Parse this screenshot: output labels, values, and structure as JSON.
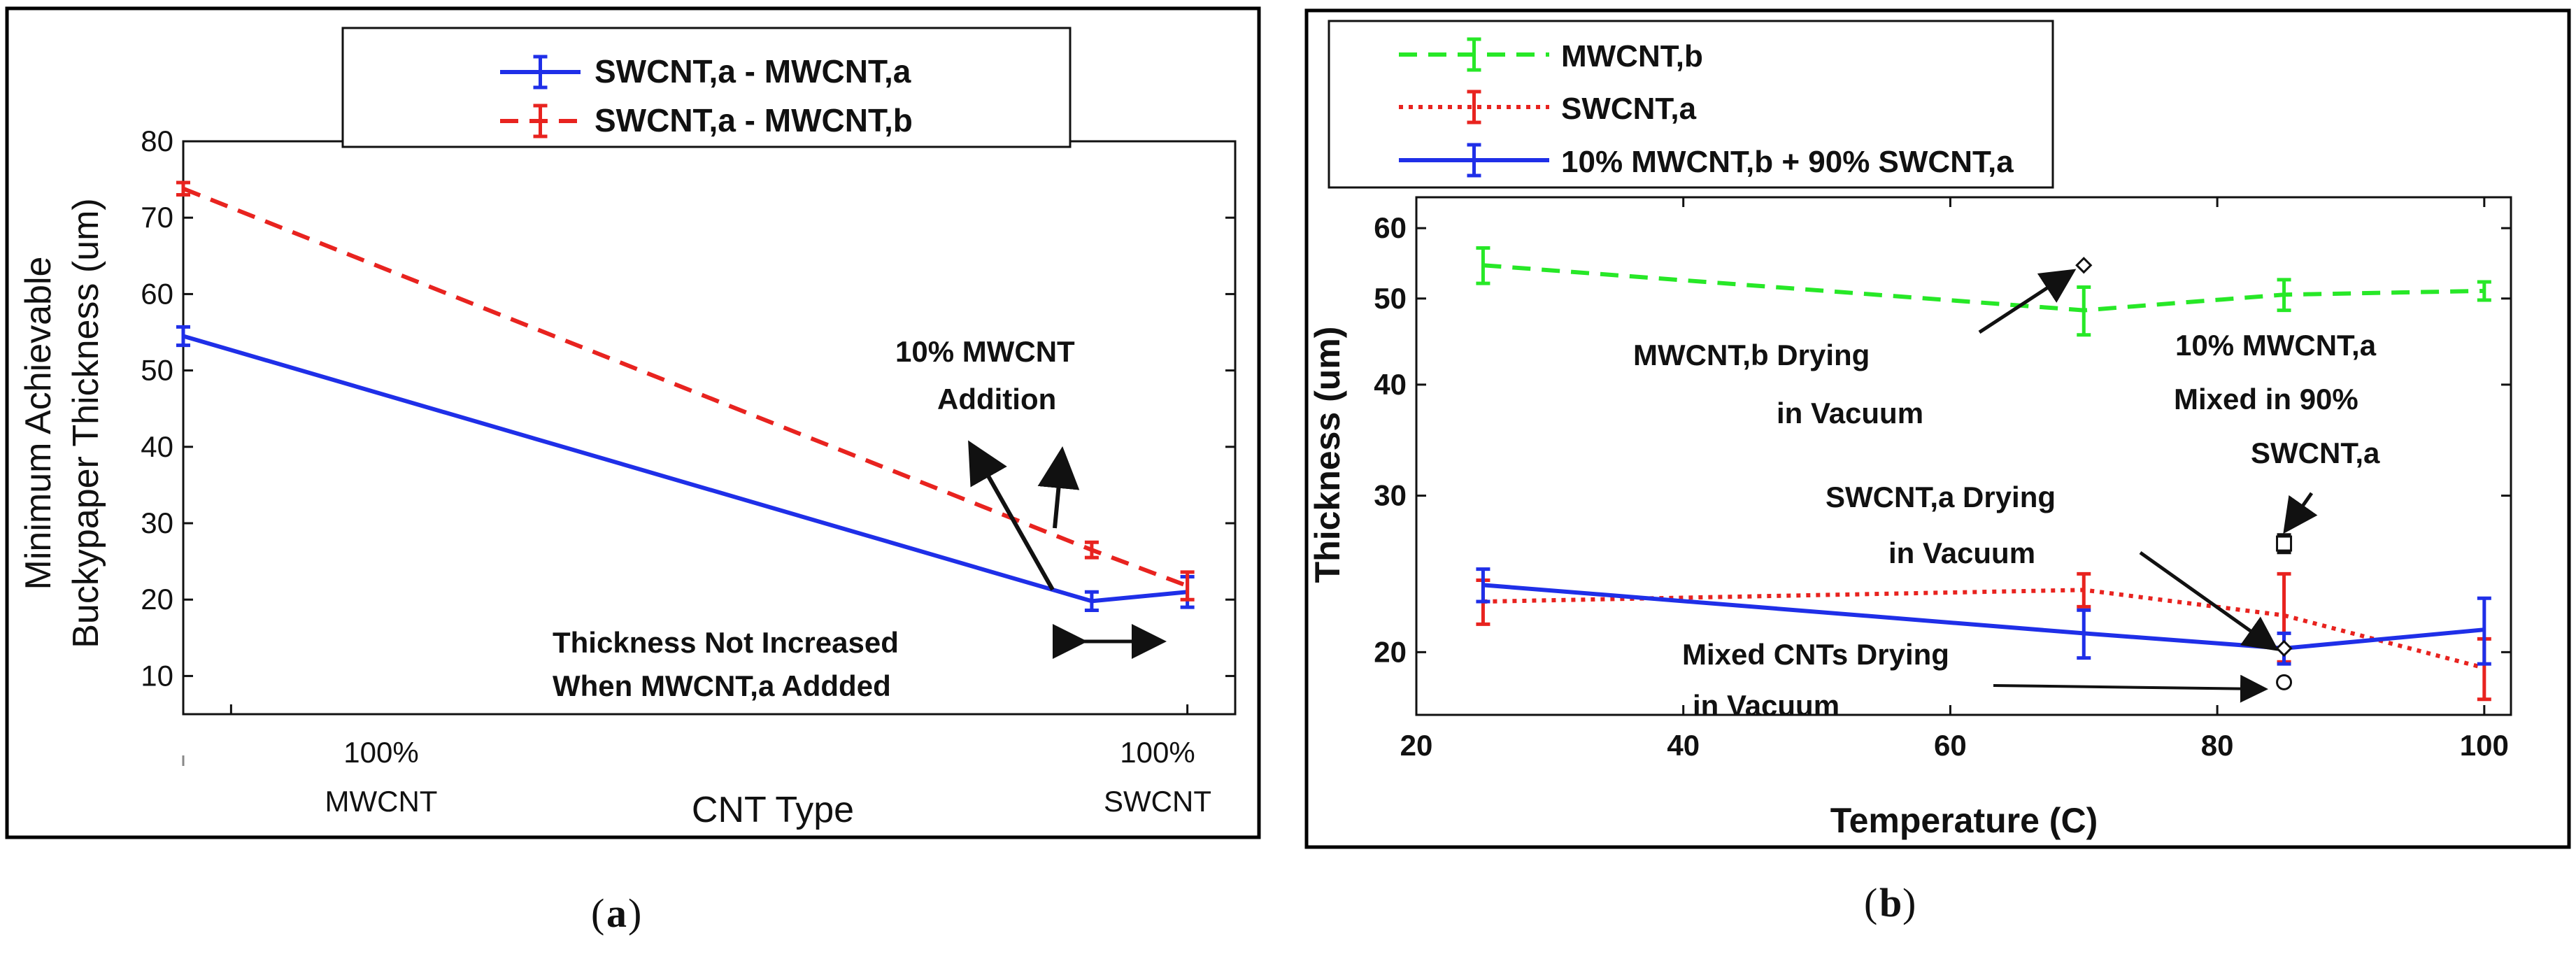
{
  "panels": [
    {
      "caption_open": "(",
      "caption_letter": "a",
      "caption_close": ")"
    },
    {
      "caption_open": "(",
      "caption_letter": "b",
      "caption_close": ")"
    }
  ],
  "chart_data": [
    {
      "type": "line",
      "title": "",
      "xlabel": "CNT Type",
      "ylabel_line1": "Minimum Achievable",
      "ylabel_line2": "Buckypaper Thickness (um)",
      "ylim": [
        5,
        80
      ],
      "yticks": [
        10,
        20,
        30,
        40,
        50,
        60,
        70,
        80
      ],
      "xlim": [
        -0.05,
        1.05
      ],
      "categories": [
        {
          "x": 0,
          "line1": "100%",
          "line2": "MWCNT"
        },
        {
          "x": 1,
          "line1": "100%",
          "line2": "SWCNT"
        }
      ],
      "grid": false,
      "legend_position": "top-center",
      "series": [
        {
          "name": "SWCNT,a - MWCNT,a",
          "color": "#1f2fe8",
          "style": "solid",
          "x": [
            -0.05,
            0.9,
            1.0
          ],
          "y": [
            54.5,
            19.8,
            21.0
          ],
          "err": [
            1.2,
            1.2,
            2.0
          ]
        },
        {
          "name": "SWCNT,a - MWCNT,b",
          "color": "#e8231f",
          "style": "dashed",
          "x": [
            -0.05,
            0.9,
            1.0
          ],
          "y": [
            73.8,
            26.5,
            21.8
          ],
          "err": [
            0.8,
            1.0,
            1.8
          ]
        }
      ],
      "annotations": [
        {
          "key": "mwcnt_add",
          "lines": [
            "10% MWCNT",
            "Addition"
          ]
        },
        {
          "key": "not_increased",
          "lines": [
            "Thickness Not Increased",
            "When MWCNT,a Addded"
          ]
        }
      ]
    },
    {
      "type": "line",
      "title": "",
      "xlabel": "Temperature (C)",
      "ylabel": "Thickness (um)",
      "yscale": "log",
      "ylim": [
        17,
        65
      ],
      "yticks": [
        20,
        30,
        40,
        50,
        60
      ],
      "xlim": [
        20,
        102
      ],
      "xticks": [
        20,
        40,
        60,
        80,
        100
      ],
      "grid": false,
      "legend_position": "top-left-outside",
      "series": [
        {
          "name": "MWCNT,b",
          "color": "#27e827",
          "style": "dashed",
          "x": [
            25,
            70,
            85,
            100
          ],
          "y": [
            54.5,
            48.5,
            50.5,
            51.0
          ],
          "err": [
            2.5,
            3.0,
            2.0,
            1.2
          ]
        },
        {
          "name": "SWCNT,a",
          "color": "#e8231f",
          "style": "dotted",
          "x": [
            25,
            70,
            85,
            100
          ],
          "y": [
            22.8,
            23.5,
            22.0,
            19.2
          ],
          "err": [
            1.3,
            1.0,
            2.5,
            1.5
          ]
        },
        {
          "name": "10% MWCNT,b + 90% SWCNT,a",
          "color": "#1f2fe8",
          "style": "solid",
          "x": [
            25,
            70,
            85,
            100
          ],
          "y": [
            23.8,
            21.0,
            20.2,
            21.2
          ],
          "err": [
            1.0,
            1.3,
            0.8,
            1.8
          ]
        }
      ],
      "markers": [
        {
          "key": "mwcnt_vac",
          "x": 70,
          "y": 54.5,
          "shape": "diamond"
        },
        {
          "key": "swcnt_vac",
          "x": 85,
          "y": 20.2,
          "shape": "diamond"
        },
        {
          "key": "mixed_vac",
          "x": 85,
          "y": 18.5,
          "shape": "circle"
        },
        {
          "key": "mixed_a",
          "x": 85,
          "y": 26.5,
          "shape": "square",
          "err": 0.6
        }
      ],
      "annotations": [
        {
          "key": "mwcnt_vac",
          "lines": [
            "MWCNT,b Drying",
            "in Vacuum"
          ]
        },
        {
          "key": "mixed_a",
          "lines": [
            "10% MWCNT,a",
            "Mixed in 90%",
            "SWCNT,a"
          ]
        },
        {
          "key": "swcnt_vac",
          "lines": [
            "SWCNT,a Drying",
            "in Vacuum"
          ]
        },
        {
          "key": "mixed_vac",
          "lines": [
            "Mixed CNTs Drying",
            "in Vacuum"
          ]
        }
      ]
    }
  ]
}
